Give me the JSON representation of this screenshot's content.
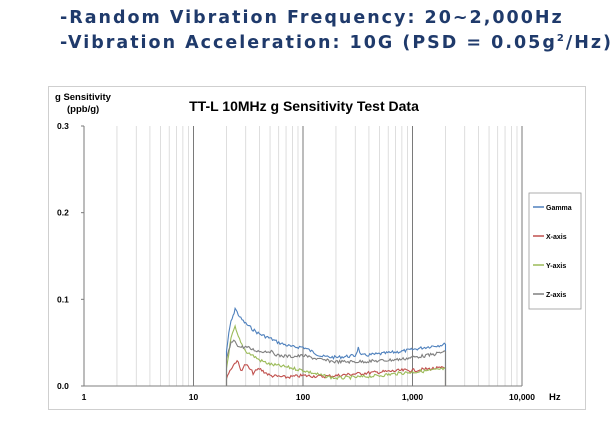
{
  "bullets": [
    {
      "prefix": "-Random Vibration Frequency: 20~2,000Hz",
      "sup": "",
      "suffix": ""
    },
    {
      "prefix": "-Vibration Acceleration: 10G (PSD = 0.05g",
      "sup": "2",
      "suffix": "/Hz)"
    }
  ],
  "chart_data": {
    "type": "line",
    "title": "TT-L 10MHz g Sensitivity Test Data",
    "ylabel_line1": "g Sensitivity",
    "ylabel_line2": "(ppb/g)",
    "xlabel": "Hz",
    "x_scale": "log",
    "xlim": [
      1,
      10000
    ],
    "ylim": [
      0,
      0.3
    ],
    "x_ticks": [
      1,
      10,
      100,
      1000,
      10000
    ],
    "x_tick_labels": [
      "1",
      "10",
      "100",
      "1,000",
      "10,000"
    ],
    "y_ticks": [
      0,
      0.1,
      0.2,
      0.3
    ],
    "y_tick_labels": [
      "0.0",
      "0.1",
      "0.2",
      "0.3"
    ],
    "grid": true,
    "legend_position": "right",
    "series": [
      {
        "name": "Gamma",
        "color": "#4f81bd",
        "points": [
          [
            1,
            0
          ],
          [
            20,
            0
          ],
          [
            20,
            0.04
          ],
          [
            21,
            0.06
          ],
          [
            22,
            0.075
          ],
          [
            23,
            0.08
          ],
          [
            24,
            0.09
          ],
          [
            25,
            0.085
          ],
          [
            27,
            0.078
          ],
          [
            30,
            0.072
          ],
          [
            35,
            0.065
          ],
          [
            40,
            0.06
          ],
          [
            50,
            0.055
          ],
          [
            60,
            0.05
          ],
          [
            80,
            0.045
          ],
          [
            100,
            0.045
          ],
          [
            120,
            0.04
          ],
          [
            150,
            0.034
          ],
          [
            200,
            0.033
          ],
          [
            300,
            0.035
          ],
          [
            320,
            0.044
          ],
          [
            340,
            0.035
          ],
          [
            500,
            0.037
          ],
          [
            800,
            0.04
          ],
          [
            1000,
            0.042
          ],
          [
            1500,
            0.046
          ],
          [
            2000,
            0.048
          ],
          [
            2000,
            0
          ],
          [
            10000,
            0
          ]
        ]
      },
      {
        "name": "X-axis",
        "color": "#c0504d",
        "points": [
          [
            1,
            0
          ],
          [
            20,
            0
          ],
          [
            20,
            0.01
          ],
          [
            22,
            0.02
          ],
          [
            25,
            0.03
          ],
          [
            27,
            0.018
          ],
          [
            30,
            0.025
          ],
          [
            35,
            0.015
          ],
          [
            40,
            0.02
          ],
          [
            50,
            0.012
          ],
          [
            70,
            0.01
          ],
          [
            100,
            0.012
          ],
          [
            150,
            0.011
          ],
          [
            200,
            0.012
          ],
          [
            300,
            0.014
          ],
          [
            500,
            0.016
          ],
          [
            800,
            0.018
          ],
          [
            1000,
            0.018
          ],
          [
            1500,
            0.02
          ],
          [
            2000,
            0.021
          ],
          [
            2000,
            0
          ],
          [
            10000,
            0
          ]
        ]
      },
      {
        "name": "Y-axis",
        "color": "#9bbb59",
        "points": [
          [
            1,
            0
          ],
          [
            20,
            0
          ],
          [
            20,
            0.02
          ],
          [
            22,
            0.055
          ],
          [
            24,
            0.068
          ],
          [
            25,
            0.06
          ],
          [
            27,
            0.05
          ],
          [
            30,
            0.04
          ],
          [
            35,
            0.035
          ],
          [
            40,
            0.03
          ],
          [
            50,
            0.025
          ],
          [
            70,
            0.022
          ],
          [
            100,
            0.018
          ],
          [
            150,
            0.012
          ],
          [
            200,
            0.009
          ],
          [
            300,
            0.01
          ],
          [
            500,
            0.012
          ],
          [
            800,
            0.015
          ],
          [
            1000,
            0.016
          ],
          [
            1500,
            0.018
          ],
          [
            2000,
            0.02
          ],
          [
            2000,
            0
          ],
          [
            10000,
            0
          ]
        ]
      },
      {
        "name": "Z-axis",
        "color": "#7f7f7f",
        "points": [
          [
            1,
            0
          ],
          [
            20,
            0
          ],
          [
            20,
            0.03
          ],
          [
            22,
            0.05
          ],
          [
            24,
            0.052
          ],
          [
            26,
            0.045
          ],
          [
            30,
            0.045
          ],
          [
            35,
            0.042
          ],
          [
            40,
            0.04
          ],
          [
            50,
            0.04
          ],
          [
            60,
            0.035
          ],
          [
            80,
            0.034
          ],
          [
            100,
            0.035
          ],
          [
            150,
            0.03
          ],
          [
            200,
            0.028
          ],
          [
            300,
            0.028
          ],
          [
            500,
            0.029
          ],
          [
            800,
            0.031
          ],
          [
            1000,
            0.033
          ],
          [
            1500,
            0.036
          ],
          [
            2000,
            0.04
          ],
          [
            2000,
            0
          ],
          [
            10000,
            0
          ]
        ]
      }
    ]
  }
}
